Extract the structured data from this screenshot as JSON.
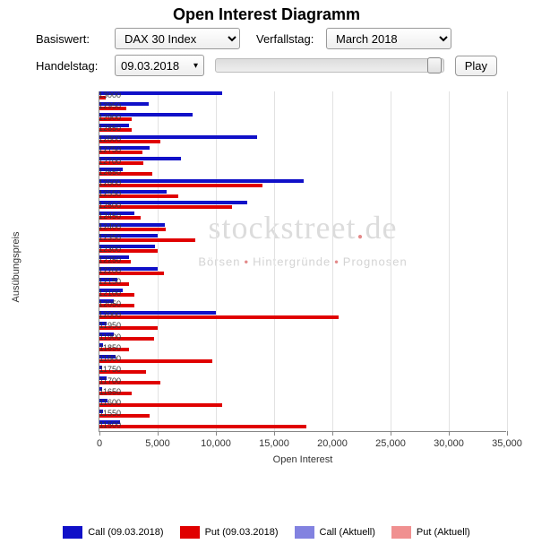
{
  "title": "Open Interest Diagramm",
  "controls": {
    "basiswert_label": "Basiswert:",
    "basiswert_value": "DAX 30 Index",
    "verfallstag_label": "Verfallstag:",
    "verfallstag_value": "March 2018",
    "handelstag_label": "Handelstag:",
    "handelstag_value": "09.03.2018",
    "play_label": "Play"
  },
  "chart": {
    "type": "horizontal-bar",
    "xlabel": "Open Interest",
    "ylabel": "Ausübungspreis",
    "xlim": [
      0,
      35000
    ],
    "xtick_step": 5000,
    "xtick_labels": [
      "0",
      "5,000",
      "10,000",
      "15,000",
      "20,000",
      "25,000",
      "30,000",
      "35,000"
    ],
    "grid_color": "#e2e2e2",
    "axis_color": "#888888",
    "background_color": "#ffffff",
    "categories": [
      "13000",
      "12950",
      "12900",
      "12850",
      "12800",
      "12750",
      "12700",
      "12650",
      "12600",
      "12550",
      "12500",
      "12450",
      "12400",
      "12350",
      "12300",
      "12250",
      "12200",
      "12150",
      "12100",
      "12050",
      "12000",
      "11950",
      "11900",
      "11850",
      "11800",
      "11750",
      "11700",
      "11650",
      "11600",
      "11550",
      "11500"
    ],
    "series": [
      {
        "name": "Call (09.03.2018)",
        "color": "#1010c8",
        "values": [
          10500,
          4200,
          8000,
          2500,
          13500,
          4300,
          7000,
          2000,
          17500,
          5800,
          12700,
          3000,
          5600,
          5000,
          4800,
          2500,
          5000,
          1500,
          2000,
          1200,
          10000,
          600,
          1200,
          300,
          1400,
          200,
          600,
          200,
          700,
          300,
          1800
        ]
      },
      {
        "name": "Put (09.03.2018)",
        "color": "#e00000",
        "values": [
          500,
          2300,
          2800,
          2800,
          5200,
          3700,
          3800,
          4500,
          14000,
          6800,
          11400,
          3500,
          5700,
          8200,
          5000,
          2700,
          5500,
          2500,
          3000,
          3000,
          20500,
          5000,
          4700,
          2500,
          9700,
          4000,
          5200,
          2800,
          10500,
          4300,
          17800
        ]
      }
    ]
  },
  "legend": [
    {
      "label": "Call (09.03.2018)",
      "color": "#1010c8"
    },
    {
      "label": "Put (09.03.2018)",
      "color": "#e00000"
    },
    {
      "label": "Call (Aktuell)",
      "color": "#8282e0"
    },
    {
      "label": "Put (Aktuell)",
      "color": "#f09090"
    }
  ],
  "watermark": {
    "brand": "stockstreet",
    "tld": "de",
    "sub1": "Börsen",
    "sub2": "Hintergründe",
    "sub3": "Prognosen"
  }
}
